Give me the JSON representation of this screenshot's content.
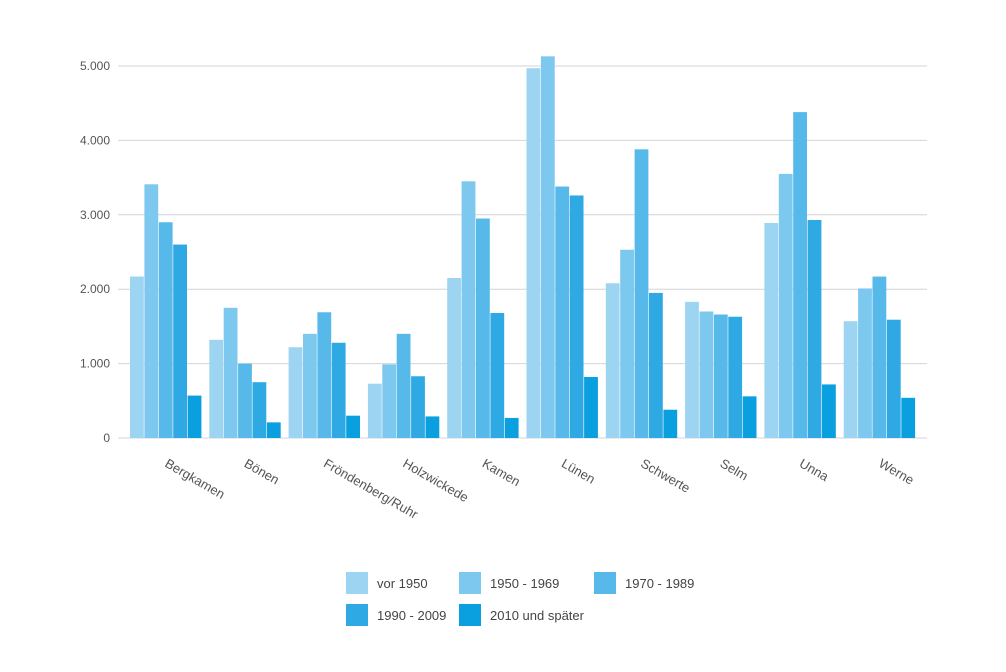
{
  "colors": {
    "series": [
      "#9dd4f2",
      "#7cc8ef",
      "#57b9ea",
      "#2fa9e4",
      "#0aa0df"
    ],
    "grid": "#d4d4d4",
    "text": "#555555"
  },
  "chart_data": {
    "type": "bar",
    "categories": [
      "Bergkamen",
      "Bönen",
      "Fröndenberg/Ruhr",
      "Holzwickede",
      "Kamen",
      "Lünen",
      "Schwerte",
      "Selm",
      "Unna",
      "Werne"
    ],
    "series": [
      {
        "name": "vor 1950",
        "values": [
          2170,
          1320,
          1220,
          730,
          2150,
          4970,
          2080,
          1830,
          2890,
          1570
        ]
      },
      {
        "name": "1950 - 1969",
        "values": [
          3410,
          1750,
          1400,
          990,
          3450,
          5130,
          2530,
          1700,
          3550,
          2010
        ]
      },
      {
        "name": "1970 - 1989",
        "values": [
          2900,
          1000,
          1690,
          1400,
          2950,
          3380,
          3880,
          1660,
          4380,
          2170
        ]
      },
      {
        "name": "1990 - 2009",
        "values": [
          2600,
          750,
          1280,
          830,
          1680,
          3260,
          1950,
          1630,
          2930,
          1590
        ]
      },
      {
        "name": "2010 und später",
        "values": [
          570,
          210,
          300,
          290,
          270,
          820,
          380,
          560,
          720,
          540
        ]
      }
    ],
    "yticks": [
      0,
      1000,
      2000,
      3000,
      4000,
      5000
    ],
    "ytick_labels": [
      "0",
      "1.000",
      "2.000",
      "3.000",
      "4.000",
      "5.000"
    ],
    "ylim": [
      0,
      5000
    ],
    "grid": true,
    "legend_position": "bottom"
  }
}
